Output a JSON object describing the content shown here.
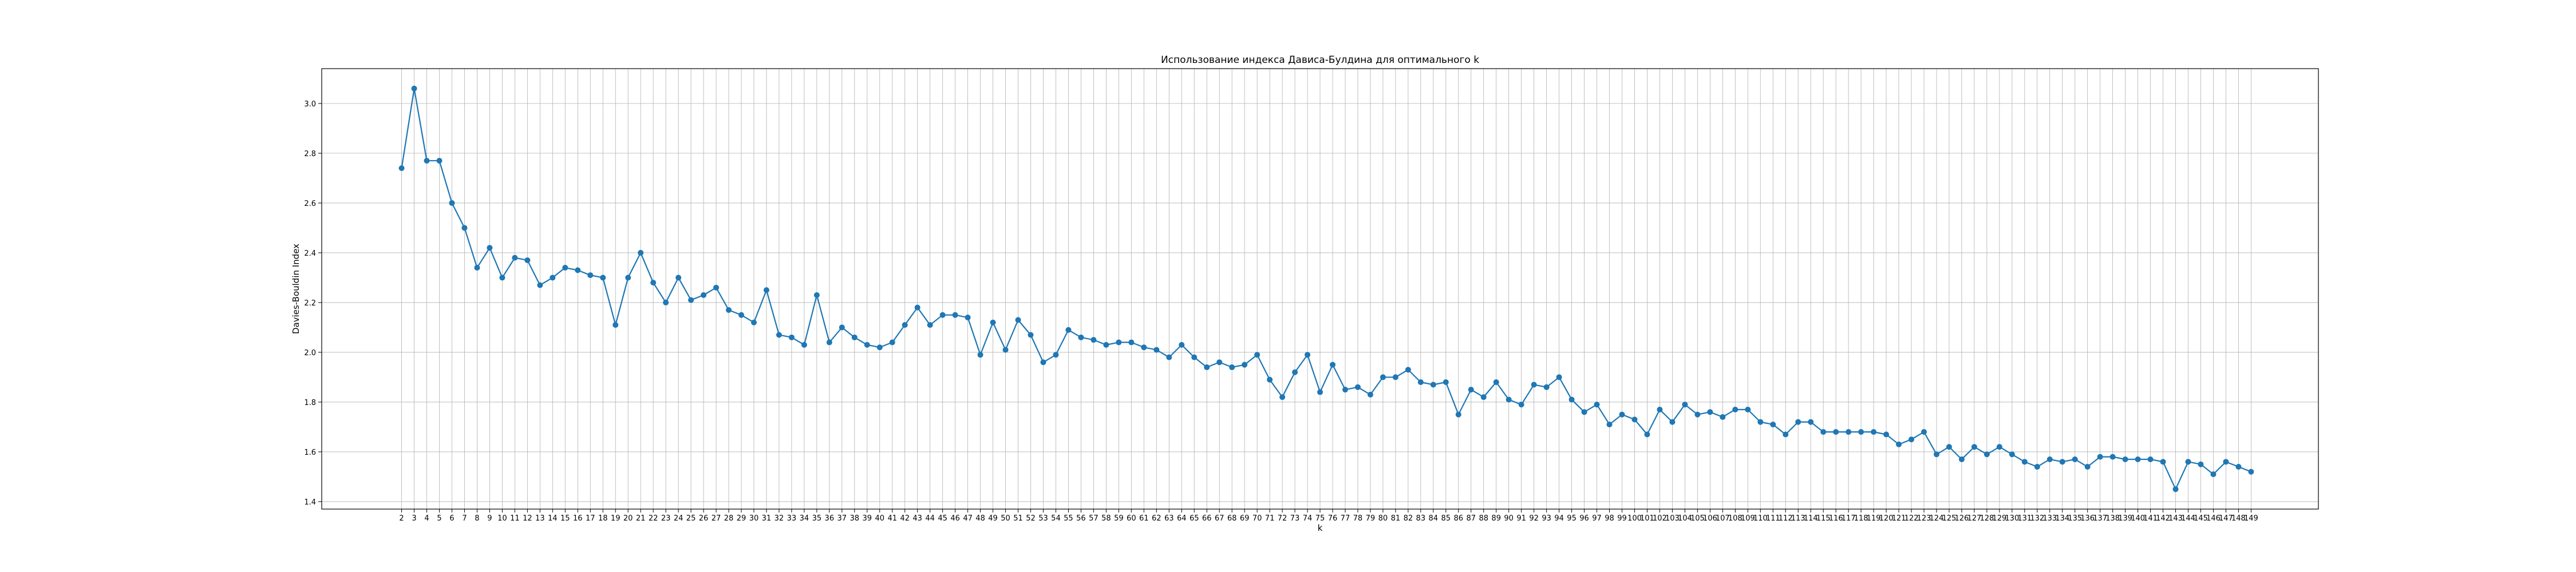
{
  "chart_data": {
    "type": "line",
    "title": "Использование индекса Дависа-Булдина для оптимального k",
    "xlabel": "k",
    "ylabel": "Davies-Bouldin Index",
    "grid": true,
    "marker": "circle",
    "ylim": [
      1.37,
      3.14
    ],
    "xlim": [
      -4.35,
      154.35
    ],
    "yticks": [
      1.4,
      1.6,
      1.8,
      2.0,
      2.2,
      2.4,
      2.6,
      2.8,
      3.0
    ],
    "ytick_labels": [
      "1.4",
      "1.6",
      "1.8",
      "2.0",
      "2.2",
      "2.4",
      "2.6",
      "2.8",
      "3.0"
    ],
    "color": "#1f77b4",
    "series": [
      {
        "x": [
          2,
          3,
          4,
          5,
          6,
          7,
          8,
          9,
          10,
          11,
          12,
          13,
          14,
          15,
          16,
          17,
          18,
          19,
          20,
          21,
          22,
          23,
          24,
          25,
          26,
          27,
          28,
          29,
          30,
          31,
          32,
          33,
          34,
          35,
          36,
          37,
          38,
          39,
          40,
          41,
          42,
          43,
          44,
          45,
          46,
          47,
          48,
          49,
          50,
          51,
          52,
          53,
          54,
          55,
          56,
          57,
          58,
          59,
          60,
          61,
          62,
          63,
          64,
          65,
          66,
          67,
          68,
          69,
          70,
          71,
          72,
          73,
          74,
          75,
          76,
          77,
          78,
          79,
          80,
          81,
          82,
          83,
          84,
          85,
          86,
          87,
          88,
          89,
          90,
          91,
          92,
          93,
          94,
          95,
          96,
          97,
          98,
          99,
          100,
          101,
          102,
          103,
          104,
          105,
          106,
          107,
          108,
          109,
          110,
          111,
          112,
          113,
          114,
          115,
          116,
          117,
          118,
          119,
          120,
          121,
          122,
          123,
          124,
          125,
          126,
          127,
          128,
          129,
          130,
          131,
          132,
          133,
          134,
          135,
          136,
          137,
          138,
          139,
          140,
          141,
          142,
          143,
          144,
          145,
          146,
          147,
          148,
          149
        ],
        "y": [
          2.74,
          3.06,
          2.77,
          2.77,
          2.6,
          2.5,
          2.34,
          2.42,
          2.3,
          2.38,
          2.37,
          2.27,
          2.3,
          2.34,
          2.33,
          2.31,
          2.3,
          2.11,
          2.3,
          2.4,
          2.28,
          2.2,
          2.3,
          2.21,
          2.23,
          2.26,
          2.17,
          2.15,
          2.12,
          2.25,
          2.07,
          2.06,
          2.03,
          2.23,
          2.04,
          2.1,
          2.06,
          2.03,
          2.02,
          2.04,
          2.11,
          2.18,
          2.11,
          2.15,
          2.15,
          2.14,
          1.99,
          2.12,
          2.01,
          2.13,
          2.07,
          1.96,
          1.99,
          2.09,
          2.06,
          2.05,
          2.03,
          2.04,
          2.04,
          2.02,
          2.01,
          1.98,
          2.03,
          1.98,
          1.94,
          1.96,
          1.94,
          1.95,
          1.99,
          1.89,
          1.82,
          1.92,
          1.99,
          1.84,
          1.95,
          1.85,
          1.86,
          1.83,
          1.9,
          1.9,
          1.93,
          1.88,
          1.87,
          1.88,
          1.75,
          1.85,
          1.82,
          1.88,
          1.81,
          1.79,
          1.87,
          1.86,
          1.9,
          1.81,
          1.76,
          1.79,
          1.71,
          1.75,
          1.73,
          1.67,
          1.77,
          1.72,
          1.79,
          1.75,
          1.76,
          1.74,
          1.77,
          1.77,
          1.72,
          1.71,
          1.67,
          1.72,
          1.72,
          1.68,
          1.68,
          1.68,
          1.68,
          1.68,
          1.67,
          1.63,
          1.65,
          1.68,
          1.59,
          1.62,
          1.57,
          1.62,
          1.59,
          1.62,
          1.59,
          1.56,
          1.54,
          1.57,
          1.56,
          1.57,
          1.54,
          1.58,
          1.58,
          1.57,
          1.57,
          1.57,
          1.56,
          1.45,
          1.56,
          1.55,
          1.51,
          1.56,
          1.54,
          1.52
        ]
      }
    ]
  }
}
